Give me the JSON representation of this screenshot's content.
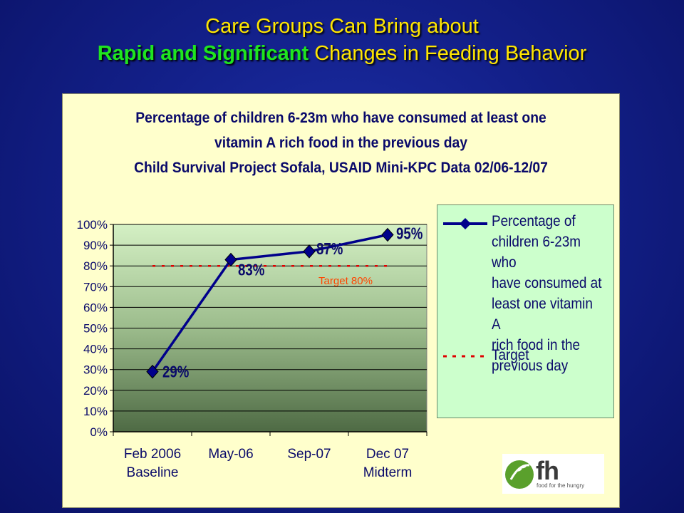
{
  "slide": {
    "title_line1": "Care Groups Can Bring about",
    "title_line2_part1": "Rapid and Significant",
    "title_line2_part2": " Changes in Feeding Behavior"
  },
  "logo": {
    "text": "fh",
    "tagline": "food for the hungry"
  },
  "chart_data": {
    "type": "line",
    "title": [
      "Percentage of children 6-23m who have consumed at least one",
      "vitamin A rich food in the previous day",
      "Child Survival Project Sofala, USAID Mini-KPC Data 02/06-12/07"
    ],
    "categories": [
      [
        "Feb 2006",
        "Baseline"
      ],
      [
        "May-06",
        ""
      ],
      [
        "Sep-07",
        ""
      ],
      [
        "Dec 07",
        "Midterm"
      ]
    ],
    "series": [
      {
        "name": "Percentage of children 6-23m who have consumed at least one vitamin A rich food in the previous day",
        "values": [
          29,
          83,
          87,
          95
        ],
        "data_labels": [
          "29%",
          "83%",
          "87%",
          "95%"
        ],
        "color": "#00008b"
      },
      {
        "name": "Target",
        "values": [
          80,
          80,
          80,
          80
        ],
        "color": "#e00000",
        "style": "dotted"
      }
    ],
    "annotation": "Target 80%",
    "ylim": [
      0,
      100
    ],
    "yticks": [
      "0%",
      "10%",
      "20%",
      "30%",
      "40%",
      "50%",
      "60%",
      "70%",
      "80%",
      "90%",
      "100%"
    ],
    "grid": true,
    "legend_position": "right",
    "legend_entries": [
      [
        "Percentage of",
        "children 6-23m who",
        "have consumed at",
        "least one vitamin A",
        "rich food in the",
        "previous day"
      ],
      [
        "Target"
      ]
    ],
    "plot_background": "gradient light-green to dark-green"
  }
}
